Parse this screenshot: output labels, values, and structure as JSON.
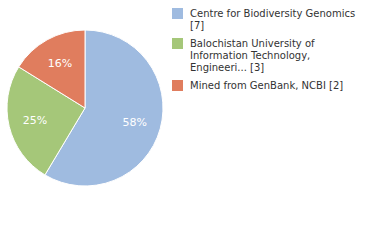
{
  "chart_data": {
    "type": "pie",
    "categories": [
      "Centre for Biodiversity Genomics [7]",
      "Balochistan University of Information Technology, Engineeri... [3]",
      "Mined from GenBank, NCBI [2]"
    ],
    "values": [
      58,
      25,
      16
    ],
    "value_labels": [
      "58%",
      "25%",
      "16%"
    ],
    "colors": [
      "#9fbbe0",
      "#a5c779",
      "#e07d5e"
    ],
    "data_labels": true,
    "legend": "top-right"
  }
}
